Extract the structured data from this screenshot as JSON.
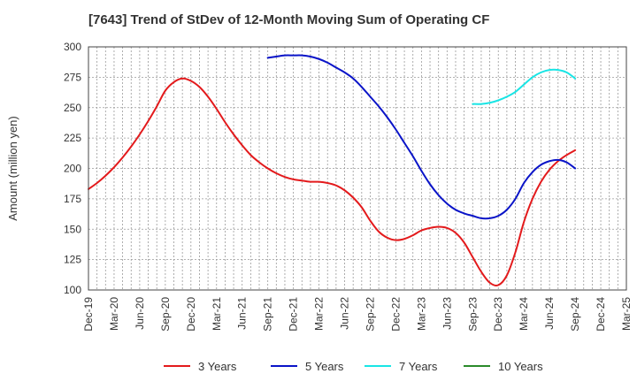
{
  "chart_data": {
    "type": "line",
    "title": "[7643]  Trend of StDev of 12-Month Moving Sum of Operating CF",
    "xlabel": "",
    "ylabel": "Amount (million yen)",
    "ylim": [
      100,
      300
    ],
    "yticks": [
      100,
      125,
      150,
      175,
      200,
      225,
      250,
      275,
      300
    ],
    "xlim": [
      "2019-12",
      "2025-03"
    ],
    "xticks": [
      "Dec-19",
      "Mar-20",
      "Jun-20",
      "Sep-20",
      "Dec-20",
      "Mar-21",
      "Jun-21",
      "Sep-21",
      "Dec-21",
      "Mar-22",
      "Jun-22",
      "Sep-22",
      "Dec-22",
      "Mar-23",
      "Jun-23",
      "Sep-23",
      "Dec-23",
      "Mar-24",
      "Jun-24",
      "Sep-24",
      "Dec-24",
      "Mar-25"
    ],
    "grid": true,
    "legend_position": "bottom",
    "series": [
      {
        "name": "3 Years",
        "color": "#e31a1c",
        "points": [
          [
            "2019-12",
            183
          ],
          [
            "2020-01",
            188
          ],
          [
            "2020-02",
            194
          ],
          [
            "2020-03",
            201
          ],
          [
            "2020-04",
            209
          ],
          [
            "2020-05",
            218
          ],
          [
            "2020-06",
            228
          ],
          [
            "2020-07",
            239
          ],
          [
            "2020-08",
            251
          ],
          [
            "2020-09",
            264
          ],
          [
            "2020-10",
            271
          ],
          [
            "2020-11",
            274
          ],
          [
            "2020-12",
            272
          ],
          [
            "2021-01",
            267
          ],
          [
            "2021-02",
            259
          ],
          [
            "2021-03",
            249
          ],
          [
            "2021-04",
            238
          ],
          [
            "2021-05",
            228
          ],
          [
            "2021-06",
            219
          ],
          [
            "2021-07",
            211
          ],
          [
            "2021-08",
            205
          ],
          [
            "2021-09",
            200
          ],
          [
            "2021-10",
            196
          ],
          [
            "2021-11",
            193
          ],
          [
            "2021-12",
            191
          ],
          [
            "2022-01",
            190
          ],
          [
            "2022-02",
            189
          ],
          [
            "2022-03",
            189
          ],
          [
            "2022-04",
            188
          ],
          [
            "2022-05",
            186
          ],
          [
            "2022-06",
            182
          ],
          [
            "2022-07",
            176
          ],
          [
            "2022-08",
            168
          ],
          [
            "2022-09",
            157
          ],
          [
            "2022-10",
            148
          ],
          [
            "2022-11",
            143
          ],
          [
            "2022-12",
            141
          ],
          [
            "2023-01",
            142
          ],
          [
            "2023-02",
            145
          ],
          [
            "2023-03",
            149
          ],
          [
            "2023-04",
            151
          ],
          [
            "2023-05",
            152
          ],
          [
            "2023-06",
            151
          ],
          [
            "2023-07",
            147
          ],
          [
            "2023-08",
            139
          ],
          [
            "2023-09",
            127
          ],
          [
            "2023-10",
            115
          ],
          [
            "2023-11",
            106
          ],
          [
            "2023-12",
            104
          ],
          [
            "2024-01",
            112
          ],
          [
            "2024-02",
            131
          ],
          [
            "2024-03",
            156
          ],
          [
            "2024-04",
            175
          ],
          [
            "2024-05",
            189
          ],
          [
            "2024-06",
            199
          ],
          [
            "2024-07",
            206
          ],
          [
            "2024-08",
            211
          ],
          [
            "2024-09",
            215
          ]
        ]
      },
      {
        "name": "5 Years",
        "color": "#0a14c8",
        "points": [
          [
            "2021-09",
            291
          ],
          [
            "2021-10",
            292
          ],
          [
            "2021-11",
            293
          ],
          [
            "2021-12",
            293
          ],
          [
            "2022-01",
            293
          ],
          [
            "2022-02",
            292
          ],
          [
            "2022-03",
            290
          ],
          [
            "2022-04",
            287
          ],
          [
            "2022-05",
            283
          ],
          [
            "2022-06",
            279
          ],
          [
            "2022-07",
            274
          ],
          [
            "2022-08",
            267
          ],
          [
            "2022-09",
            259
          ],
          [
            "2022-10",
            251
          ],
          [
            "2022-11",
            242
          ],
          [
            "2022-12",
            232
          ],
          [
            "2023-01",
            221
          ],
          [
            "2023-02",
            210
          ],
          [
            "2023-03",
            198
          ],
          [
            "2023-04",
            187
          ],
          [
            "2023-05",
            178
          ],
          [
            "2023-06",
            171
          ],
          [
            "2023-07",
            166
          ],
          [
            "2023-08",
            163
          ],
          [
            "2023-09",
            161
          ],
          [
            "2023-10",
            159
          ],
          [
            "2023-11",
            159
          ],
          [
            "2023-12",
            161
          ],
          [
            "2024-01",
            166
          ],
          [
            "2024-02",
            175
          ],
          [
            "2024-03",
            188
          ],
          [
            "2024-04",
            197
          ],
          [
            "2024-05",
            203
          ],
          [
            "2024-06",
            206
          ],
          [
            "2024-07",
            207
          ],
          [
            "2024-08",
            205
          ],
          [
            "2024-09",
            200
          ]
        ]
      },
      {
        "name": "7 Years",
        "color": "#19e5e5",
        "points": [
          [
            "2023-09",
            253
          ],
          [
            "2023-10",
            253
          ],
          [
            "2023-11",
            254
          ],
          [
            "2023-12",
            256
          ],
          [
            "2024-01",
            259
          ],
          [
            "2024-02",
            263
          ],
          [
            "2024-03",
            269
          ],
          [
            "2024-04",
            275
          ],
          [
            "2024-05",
            279
          ],
          [
            "2024-06",
            281
          ],
          [
            "2024-07",
            281
          ],
          [
            "2024-08",
            279
          ],
          [
            "2024-09",
            274
          ]
        ]
      },
      {
        "name": "10 Years",
        "color": "#2a8a2a",
        "points": []
      }
    ]
  }
}
